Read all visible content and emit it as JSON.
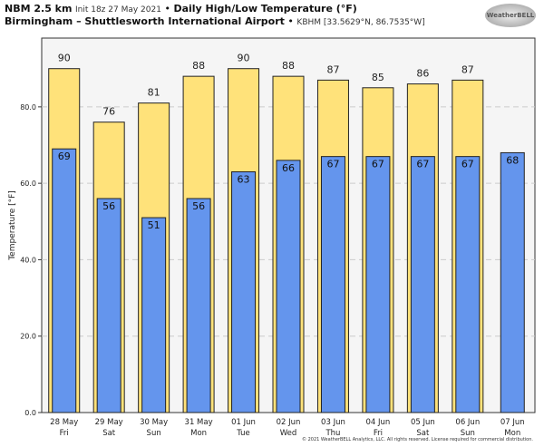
{
  "header": {
    "model": "NBM 2.5 km",
    "init": "Init 18z 27 May 2021",
    "sep": "•",
    "title": "Daily High/Low Temperature (°F)",
    "location": "Birmingham – Shuttlesworth International Airport",
    "station": "KBHM [33.5629°N, 86.7535°W]"
  },
  "logo": "WeatherBELL",
  "copyright": "© 2021 WeatherBELL Analytics, LLC. All rights reserved. License required for commercial distribution.",
  "chart_data": {
    "type": "bar",
    "title": "Daily High/Low Temperature (°F)",
    "ylabel": "Temperature [°F]",
    "ylim": [
      0,
      98
    ],
    "yticks": [
      "0.0",
      "20.0",
      "40.0",
      "60.0",
      "80.0"
    ],
    "categories": [
      [
        "28 May",
        "Fri"
      ],
      [
        "29 May",
        "Sat"
      ],
      [
        "30 May",
        "Sun"
      ],
      [
        "31 May",
        "Mon"
      ],
      [
        "01 Jun",
        "Tue"
      ],
      [
        "02 Jun",
        "Wed"
      ],
      [
        "03 Jun",
        "Thu"
      ],
      [
        "04 Jun",
        "Fri"
      ],
      [
        "05 Jun",
        "Sat"
      ],
      [
        "06 Jun",
        "Sun"
      ],
      [
        "07 Jun",
        "Mon"
      ]
    ],
    "series": [
      {
        "name": "High",
        "color": "#ffe27a",
        "values": [
          90,
          76,
          81,
          88,
          90,
          88,
          87,
          85,
          86,
          87,
          null
        ]
      },
      {
        "name": "Low",
        "color": "#6495ed",
        "values": [
          69,
          56,
          51,
          56,
          63,
          66,
          67,
          67,
          67,
          67,
          68
        ]
      }
    ]
  }
}
